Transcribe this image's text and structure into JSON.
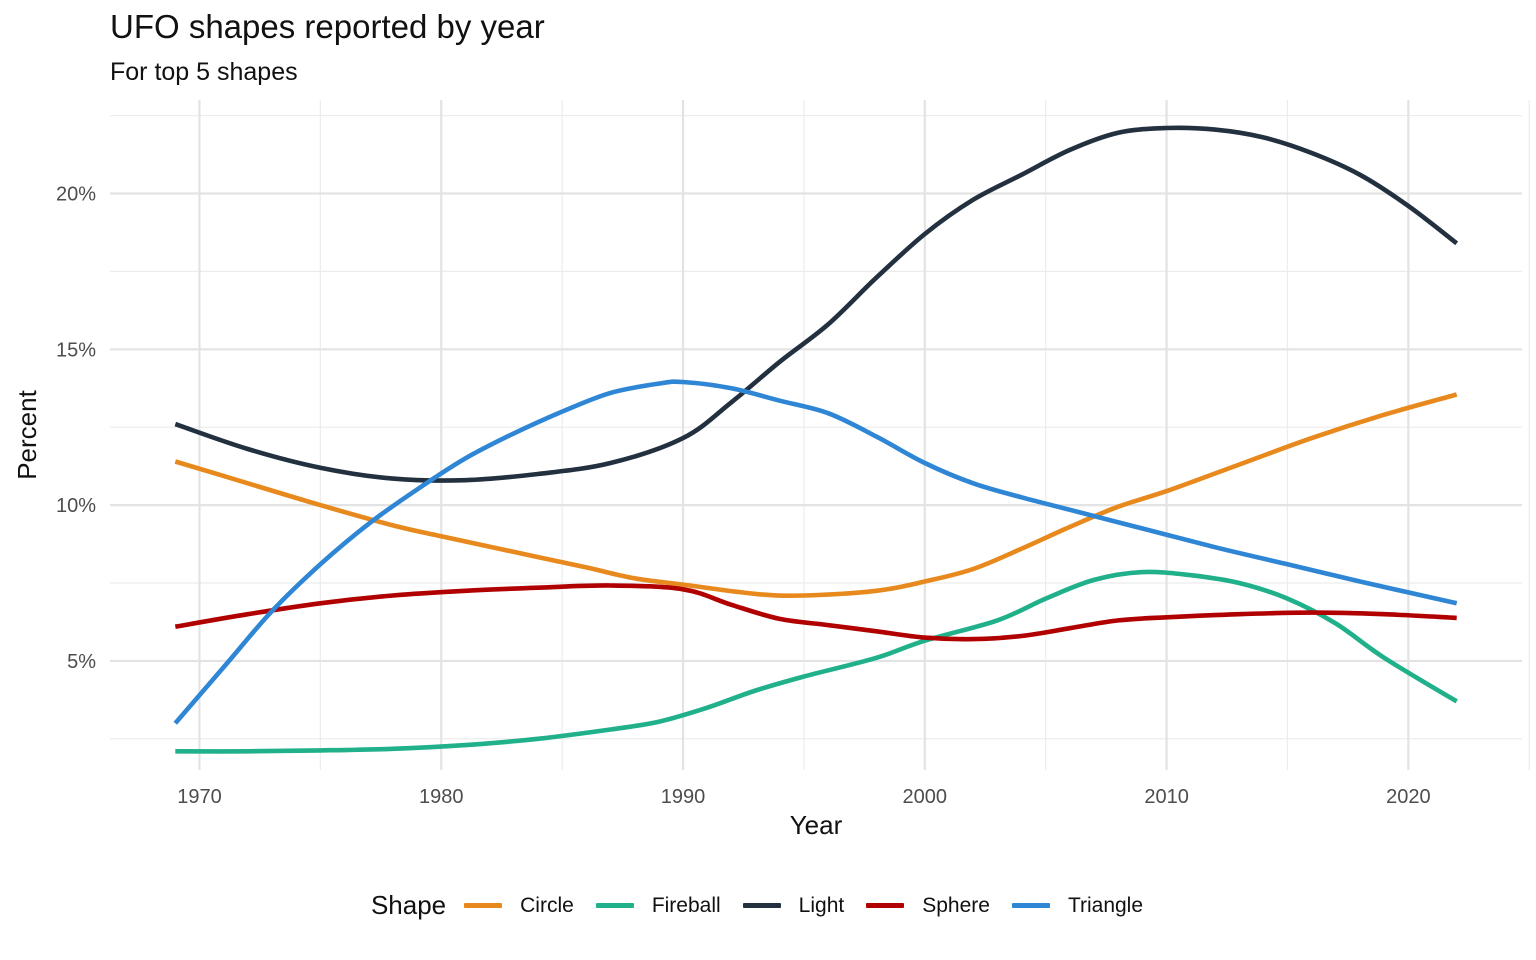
{
  "chart_data": {
    "type": "line",
    "title": "UFO shapes reported by year",
    "subtitle": "For top 5 shapes",
    "xlabel": "Year",
    "ylabel": "Percent",
    "xlim": [
      1966.3,
      2024.7
    ],
    "ylim": [
      1.5,
      23
    ],
    "x_ticks": [
      1970,
      1980,
      1990,
      2000,
      2010,
      2020
    ],
    "y_ticks": [
      5,
      10,
      15,
      20
    ],
    "y_tick_labels": [
      "5%",
      "10%",
      "15%",
      "20%"
    ],
    "grid": true,
    "legend_title": "Shape",
    "legend_position": "bottom",
    "series": [
      {
        "name": "Circle",
        "color": "#e8891d",
        "x": [
          1969,
          1972,
          1975,
          1978,
          1980,
          1983,
          1986,
          1988,
          1990,
          1993,
          1995,
          1998,
          2000,
          2002,
          2004,
          2006,
          2008,
          2010,
          2013,
          2016,
          2019,
          2022
        ],
        "y": [
          11.4,
          10.7,
          10.0,
          9.35,
          9.0,
          8.5,
          8.0,
          7.65,
          7.45,
          7.15,
          7.1,
          7.25,
          7.55,
          7.95,
          8.6,
          9.3,
          9.95,
          10.45,
          11.3,
          12.15,
          12.9,
          13.55
        ]
      },
      {
        "name": "Fireball",
        "color": "#20b08a",
        "x": [
          1969,
          1972,
          1975,
          1978,
          1981,
          1984,
          1987,
          1989,
          1991,
          1993,
          1995,
          1998,
          2000,
          2003,
          2005,
          2007,
          2009,
          2011,
          2013,
          2015,
          2017,
          2019,
          2022
        ],
        "y": [
          2.1,
          2.1,
          2.13,
          2.18,
          2.3,
          2.5,
          2.8,
          3.05,
          3.5,
          4.05,
          4.5,
          5.1,
          5.65,
          6.3,
          7.0,
          7.6,
          7.85,
          7.75,
          7.5,
          7.0,
          6.2,
          5.1,
          3.7
        ]
      },
      {
        "name": "Light",
        "color": "#22303f",
        "x": [
          1969,
          1972,
          1975,
          1978,
          1981,
          1984,
          1987,
          1990,
          1992,
          1994,
          1996,
          1998,
          2000,
          2002,
          2004,
          2006,
          2008,
          2010,
          2012,
          2014,
          2016,
          2018,
          2020,
          2022
        ],
        "y": [
          12.6,
          11.8,
          11.2,
          10.85,
          10.8,
          11.0,
          11.35,
          12.15,
          13.3,
          14.6,
          15.8,
          17.3,
          18.7,
          19.8,
          20.6,
          21.4,
          21.95,
          22.1,
          22.05,
          21.8,
          21.3,
          20.6,
          19.6,
          18.4
        ]
      },
      {
        "name": "Sphere",
        "color": "#b00000",
        "x": [
          1969,
          1972,
          1975,
          1978,
          1981,
          1984,
          1987,
          1990,
          1992,
          1994,
          1996,
          1998,
          2000,
          2002,
          2004,
          2006,
          2008,
          2010,
          2013,
          2016,
          2019,
          2022
        ],
        "y": [
          6.1,
          6.5,
          6.85,
          7.1,
          7.25,
          7.35,
          7.42,
          7.3,
          6.8,
          6.35,
          6.15,
          5.95,
          5.75,
          5.7,
          5.8,
          6.05,
          6.3,
          6.4,
          6.5,
          6.55,
          6.5,
          6.38
        ]
      },
      {
        "name": "Triangle",
        "color": "#2f86d4",
        "x": [
          1969,
          1971,
          1973,
          1975,
          1977,
          1979,
          1981,
          1983,
          1985,
          1987,
          1989,
          1990,
          1992,
          1994,
          1996,
          1998,
          2000,
          2002,
          2004,
          2006,
          2009,
          2012,
          2015,
          2018,
          2022
        ],
        "y": [
          3.0,
          4.8,
          6.6,
          8.1,
          9.4,
          10.5,
          11.5,
          12.3,
          13.0,
          13.6,
          13.9,
          13.95,
          13.75,
          13.35,
          12.95,
          12.2,
          11.35,
          10.7,
          10.25,
          9.85,
          9.25,
          8.65,
          8.1,
          7.55,
          6.85
        ]
      }
    ]
  }
}
